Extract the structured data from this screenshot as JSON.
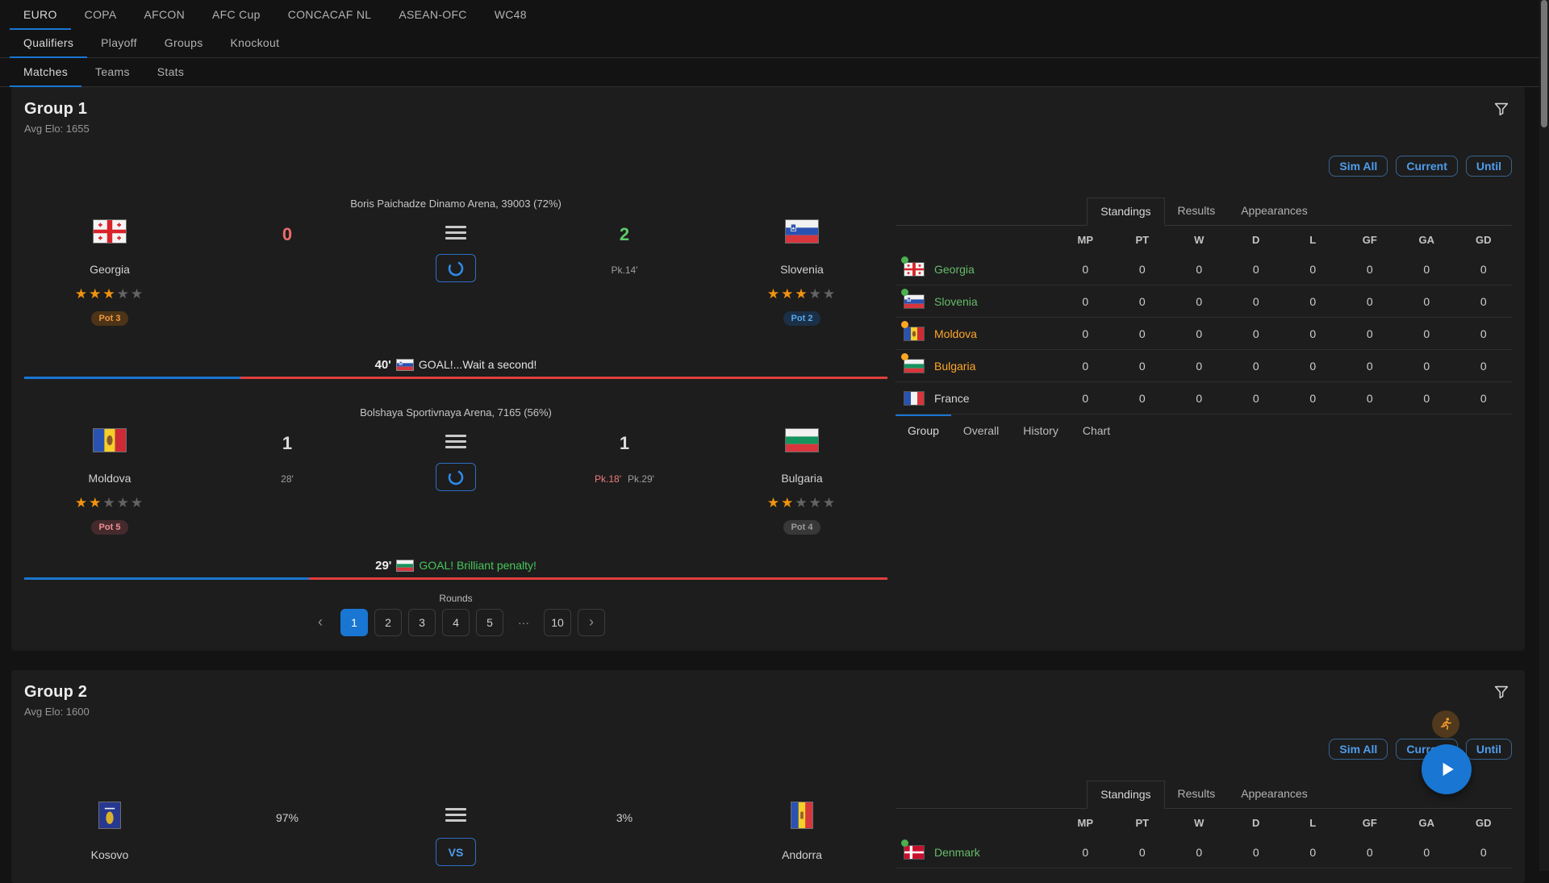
{
  "nav": {
    "tournament_tabs": [
      "EURO",
      "COPA",
      "AFCON",
      "AFC Cup",
      "CONCACAF NL",
      "ASEAN-OFC",
      "WC48"
    ],
    "tournament_active": 0,
    "stage_tabs": [
      "Qualifiers",
      "Playoff",
      "Groups",
      "Knockout"
    ],
    "stage_active": 0,
    "section_tabs": [
      "Matches",
      "Teams",
      "Stats"
    ],
    "section_active": 0
  },
  "colors": {
    "accent": "#1976d2",
    "score_red": "#ee6b6b",
    "score_green": "#5ecb6a",
    "goal_green": "#45c85a",
    "event_line_blue": "#1976d2",
    "event_line_red": "#e23e3e",
    "star_filled": "#f0930f",
    "star_empty": "#636363",
    "dot_green": "#4caf50",
    "dot_orange": "#ffa726"
  },
  "groups": [
    {
      "title": "Group 1",
      "avg_elo": "Avg Elo: 1655",
      "sim_buttons": [
        "Sim All",
        "Current",
        "Until"
      ],
      "matches": [
        {
          "venue": "Boris Paichadze Dinamo Arena, 39003 (72%)",
          "home": {
            "name": "Georgia",
            "flag": "ge",
            "stars": 3,
            "pot": "Pot 3",
            "pot_style": "orange"
          },
          "away": {
            "name": "Slovenia",
            "flag": "si",
            "stars": 3,
            "pot": "Pot 2",
            "pot_style": "blue"
          },
          "home_score": "0",
          "home_score_style": "red",
          "away_score": "2",
          "away_score_style": "green",
          "home_note": [],
          "away_note": [
            {
              "text": "Pk.14'",
              "style": "grey"
            }
          ],
          "event": {
            "minute": "40'",
            "flag": "si",
            "text": "GOAL!...Wait a second!",
            "style": "white"
          },
          "progress_blue_pct": 25
        },
        {
          "venue": "Bolshaya Sportivnaya Arena, 7165 (56%)",
          "home": {
            "name": "Moldova",
            "flag": "md",
            "stars": 2,
            "pot": "Pot 5",
            "pot_style": "pink"
          },
          "away": {
            "name": "Bulgaria",
            "flag": "bg",
            "stars": 2,
            "pot": "Pot 4",
            "pot_style": "grey"
          },
          "home_score": "1",
          "home_score_style": "white",
          "away_score": "1",
          "away_score_style": "white",
          "home_note": [
            {
              "text": "28'",
              "style": "grey"
            }
          ],
          "away_note": [
            {
              "text": "Pk.18'",
              "style": "red"
            },
            {
              "text": "Pk.29'",
              "style": "grey"
            }
          ],
          "event": {
            "minute": "29'",
            "flag": "bg",
            "text": "GOAL! Brilliant penalty!",
            "style": "green"
          },
          "progress_blue_pct": 33
        }
      ],
      "pagination": {
        "label": "Rounds",
        "pages": [
          "1",
          "2",
          "3",
          "4",
          "5",
          "···",
          "10"
        ],
        "active": "1"
      },
      "panel": {
        "tabs": [
          "Standings",
          "Results",
          "Appearances"
        ],
        "active_tab": 0,
        "columns": [
          "MP",
          "PT",
          "W",
          "D",
          "L",
          "GF",
          "GA",
          "GD"
        ],
        "rows": [
          {
            "team": "Georgia",
            "flag": "ge",
            "dot": "green",
            "name_style": "green",
            "values": [
              "0",
              "0",
              "0",
              "0",
              "0",
              "0",
              "0",
              "0"
            ]
          },
          {
            "team": "Slovenia",
            "flag": "si",
            "dot": "green",
            "name_style": "green",
            "values": [
              "0",
              "0",
              "0",
              "0",
              "0",
              "0",
              "0",
              "0"
            ]
          },
          {
            "team": "Moldova",
            "flag": "md",
            "dot": "orange",
            "name_style": "orange",
            "values": [
              "0",
              "0",
              "0",
              "0",
              "0",
              "0",
              "0",
              "0"
            ]
          },
          {
            "team": "Bulgaria",
            "flag": "bg",
            "dot": "orange",
            "name_style": "orange",
            "values": [
              "0",
              "0",
              "0",
              "0",
              "0",
              "0",
              "0",
              "0"
            ]
          },
          {
            "team": "France",
            "flag": "fr",
            "dot": "none",
            "name_style": "white",
            "values": [
              "0",
              "0",
              "0",
              "0",
              "0",
              "0",
              "0",
              "0"
            ]
          }
        ],
        "bottom_tabs": [
          "Group",
          "Overall",
          "History",
          "Chart"
        ],
        "bottom_active": 0
      }
    },
    {
      "title": "Group 2",
      "avg_elo": "Avg Elo: 1600",
      "sim_buttons": [
        "Sim All",
        "Current",
        "Until"
      ],
      "has_fab": true,
      "matches": [
        {
          "venue": "",
          "home": {
            "name": "Kosovo",
            "flag": "xk",
            "stars": 0,
            "pot": ""
          },
          "away": {
            "name": "Andorra",
            "flag": "ad",
            "stars": 0,
            "pot": ""
          },
          "home_score": "97%",
          "home_score_style": "percent",
          "away_score": "3%",
          "away_score_style": "percent",
          "home_note": [],
          "away_note": [],
          "vs_label": "VS",
          "mode": "upcoming"
        }
      ],
      "panel": {
        "tabs": [
          "Standings",
          "Results",
          "Appearances"
        ],
        "active_tab": 0,
        "columns": [
          "MP",
          "PT",
          "W",
          "D",
          "L",
          "GF",
          "GA",
          "GD"
        ],
        "rows": [
          {
            "team": "Denmark",
            "flag": "dk",
            "dot": "green",
            "name_style": "green",
            "values": [
              "0",
              "0",
              "0",
              "0",
              "0",
              "0",
              "0",
              "0"
            ]
          }
        ]
      }
    }
  ]
}
